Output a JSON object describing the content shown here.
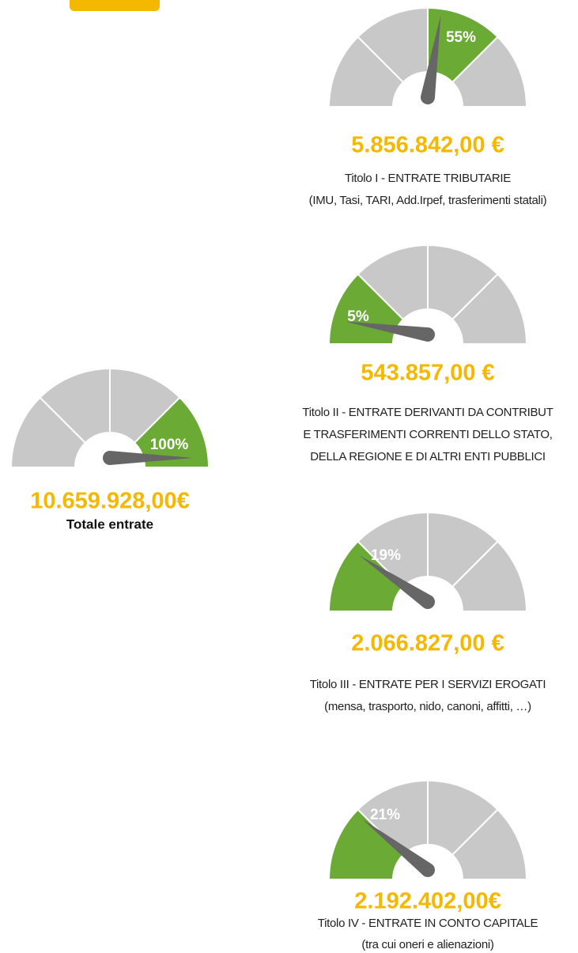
{
  "chart_data": [
    {
      "type": "gauge",
      "value": 55,
      "value_label": "55%",
      "amount": "5.856.842,00 €",
      "title_lines": [
        "Titolo I - ENTRATE TRIBUTARIE",
        "(IMU, Tasi, TARI, Add.Irpef, trasferimenti statali)"
      ]
    },
    {
      "type": "gauge",
      "value": 5,
      "value_label": "5%",
      "amount": "543.857,00 €",
      "title_lines": [
        "Titolo II - ENTRATE DERIVANTI DA CONTRIBUT",
        "E TRASFERIMENTI CORRENTI DELLO STATO,",
        "DELLA REGIONE E DI ALTRI ENTI PUBBLICI"
      ]
    },
    {
      "type": "gauge",
      "value": 100,
      "value_label": "100%",
      "amount": "10.659.928,00€",
      "title_lines": [
        "Totale entrate"
      ]
    },
    {
      "type": "gauge",
      "value": 19,
      "value_label": "19%",
      "amount": "2.066.827,00 €",
      "title_lines": [
        "Titolo III - ENTRATE PER I SERVIZI EROGATI",
        "(mensa, trasporto, nido, canoni, affitti, …)"
      ]
    },
    {
      "type": "gauge",
      "value": 21,
      "value_label": "21%",
      "amount": "2.192.402,00€",
      "title_lines": [
        "Titolo IV - ENTRATE IN CONTO CAPITALE",
        "(tra cui oneri e alienazioni)"
      ]
    }
  ]
}
